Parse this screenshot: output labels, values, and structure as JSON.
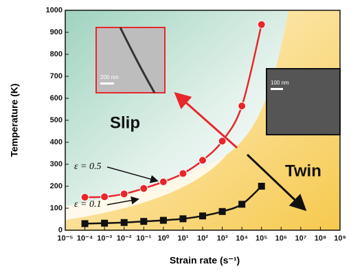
{
  "chart_data": {
    "type": "scatter",
    "x_label": "Strain rate (s⁻¹)",
    "y_label": "Temperature (K)",
    "x_scale": "log",
    "xlim": [
      1e-05,
      1000000000
    ],
    "xticks": [
      {
        "value": 1e-05,
        "label": "10⁻⁵"
      },
      {
        "value": 0.0001,
        "label": "10⁻⁴"
      },
      {
        "value": 0.001,
        "label": "10⁻³"
      },
      {
        "value": 0.01,
        "label": "10⁻²"
      },
      {
        "value": 0.1,
        "label": "10⁻¹"
      },
      {
        "value": 1,
        "label": "10⁰"
      },
      {
        "value": 10,
        "label": "10¹"
      },
      {
        "value": 100,
        "label": "10²"
      },
      {
        "value": 1000,
        "label": "10³"
      },
      {
        "value": 10000,
        "label": "10⁴"
      },
      {
        "value": 100000,
        "label": "10⁵"
      },
      {
        "value": 1000000,
        "label": "10⁶"
      },
      {
        "value": 10000000,
        "label": "10⁷"
      },
      {
        "value": 100000000,
        "label": "10⁸"
      },
      {
        "value": 1000000000,
        "label": "10⁹"
      }
    ],
    "ylim": [
      0,
      1000
    ],
    "yticks": [
      0,
      100,
      200,
      300,
      400,
      500,
      600,
      700,
      800,
      900,
      1000
    ],
    "x": [
      0.0001,
      0.001,
      0.01,
      0.1,
      1,
      10,
      100,
      1000,
      10000,
      100000
    ],
    "series": [
      {
        "name": "ε = 0.5",
        "color": "#e8262b",
        "marker": "circle",
        "values": [
          150,
          152,
          165,
          190,
          220,
          258,
          318,
          405,
          565,
          935
        ]
      },
      {
        "name": "ε = 0.1",
        "color": "#111111",
        "marker": "square",
        "values": [
          30,
          32,
          35,
          40,
          45,
          52,
          65,
          85,
          118,
          200
        ]
      }
    ],
    "annotations": [
      "Slip",
      "Twin",
      "200 nm",
      "100 nm"
    ]
  }
}
